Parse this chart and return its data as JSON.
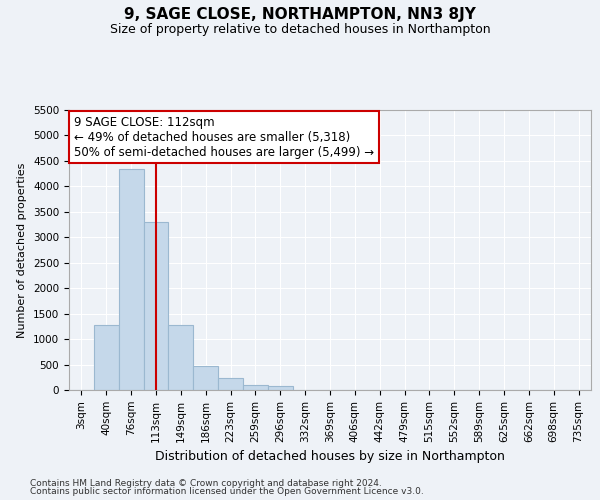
{
  "title": "9, SAGE CLOSE, NORTHAMPTON, NN3 8JY",
  "subtitle": "Size of property relative to detached houses in Northampton",
  "xlabel": "Distribution of detached houses by size in Northampton",
  "ylabel": "Number of detached properties",
  "footer1": "Contains HM Land Registry data © Crown copyright and database right 2024.",
  "footer2": "Contains public sector information licensed under the Open Government Licence v3.0.",
  "categories": [
    "3sqm",
    "40sqm",
    "76sqm",
    "113sqm",
    "149sqm",
    "186sqm",
    "223sqm",
    "259sqm",
    "296sqm",
    "332sqm",
    "369sqm",
    "406sqm",
    "442sqm",
    "479sqm",
    "515sqm",
    "552sqm",
    "589sqm",
    "625sqm",
    "662sqm",
    "698sqm",
    "735sqm"
  ],
  "values": [
    0,
    1270,
    4350,
    3300,
    1270,
    480,
    240,
    100,
    75,
    0,
    0,
    0,
    0,
    0,
    0,
    0,
    0,
    0,
    0,
    0,
    0
  ],
  "ylim": [
    0,
    5500
  ],
  "yticks": [
    0,
    500,
    1000,
    1500,
    2000,
    2500,
    3000,
    3500,
    4000,
    4500,
    5000,
    5500
  ],
  "bar_color": "#c5d8ea",
  "bar_edge_color": "#9bb8d0",
  "vline_x_index": 3,
  "vline_color": "#cc0000",
  "annotation_line1": "9 SAGE CLOSE: 112sqm",
  "annotation_line2": "← 49% of detached houses are smaller (5,318)",
  "annotation_line3": "50% of semi-detached houses are larger (5,499) →",
  "annotation_box_facecolor": "#ffffff",
  "annotation_box_edgecolor": "#cc0000",
  "bg_color": "#eef2f7",
  "plot_bg_color": "#eef2f7",
  "grid_color": "#ffffff",
  "title_fontsize": 11,
  "subtitle_fontsize": 9,
  "ylabel_fontsize": 8,
  "xlabel_fontsize": 9,
  "tick_fontsize": 7.5,
  "footer_fontsize": 6.5,
  "annotation_fontsize": 8.5
}
